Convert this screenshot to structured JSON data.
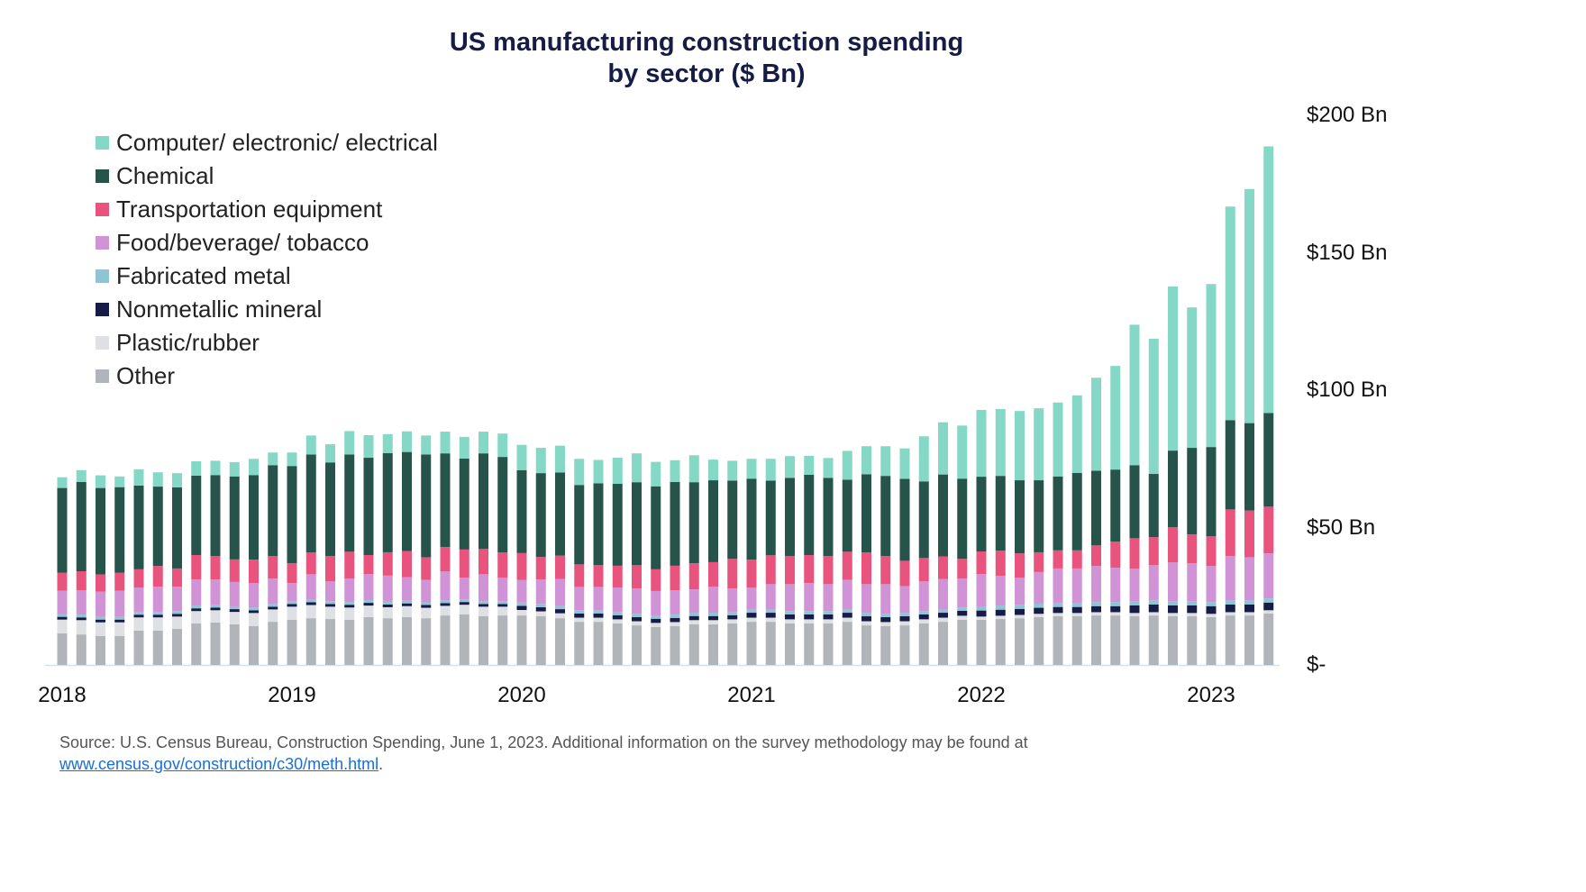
{
  "chart_data": {
    "type": "bar",
    "stacked": true,
    "title": "US manufacturing construction spending\nby sector ($ Bn)",
    "title_lines": [
      "US manufacturing construction spending",
      "by sector ($ Bn)"
    ],
    "x_tick_labels": [
      "2018",
      "2019",
      "2020",
      "2021",
      "2022",
      "2023"
    ],
    "x_period": "monthly, Jan 2018 – Apr 2023",
    "y_tick_labels": [
      "$-",
      "$50 Bn",
      "$100 Bn",
      "$150 Bn",
      "$200 Bn"
    ],
    "y_ticks": [
      0,
      50,
      100,
      150,
      200
    ],
    "ylim": [
      0,
      200
    ],
    "y_axis_side": "right",
    "grid": false,
    "legend_position": "top-left",
    "series": [
      {
        "name": "Other",
        "color": "#b1b4b8",
        "values": [
          11.5,
          11.1,
          10.5,
          10.5,
          12.5,
          12.5,
          13.1,
          15.1,
          15.4,
          14.8,
          14.1,
          15.7,
          16.4,
          17.0,
          16.7,
          16.4,
          17.4,
          17.0,
          17.4,
          17.0,
          18.0,
          18.4,
          17.7,
          18.0,
          18.0,
          17.7,
          17.0,
          15.7,
          15.7,
          15.1,
          14.4,
          13.8,
          14.1,
          14.8,
          14.8,
          15.1,
          15.7,
          15.7,
          15.1,
          15.1,
          15.1,
          15.7,
          14.4,
          14.1,
          14.4,
          15.1,
          15.7,
          16.4,
          16.4,
          16.7,
          17.0,
          17.4,
          17.7,
          17.7,
          18.0,
          18.0,
          17.7,
          18.0,
          17.7,
          17.7,
          17.4,
          18.0,
          18.0,
          18.7
        ]
      },
      {
        "name": "Plastic/rubber",
        "color": "#dfe0e3",
        "values": [
          5.0,
          5.2,
          5.0,
          5.0,
          4.8,
          4.8,
          4.5,
          4.5,
          4.5,
          4.5,
          4.8,
          4.5,
          4.8,
          4.8,
          4.5,
          4.5,
          4.2,
          4.0,
          4.0,
          3.8,
          3.5,
          3.5,
          3.5,
          3.2,
          2.0,
          1.8,
          1.8,
          1.5,
          1.5,
          1.5,
          1.5,
          1.5,
          1.5,
          1.5,
          1.5,
          1.5,
          1.5,
          1.5,
          1.5,
          1.5,
          1.5,
          1.5,
          1.5,
          1.5,
          1.5,
          1.5,
          1.5,
          1.5,
          1.2,
          1.2,
          1.2,
          1.2,
          1.2,
          1.2,
          1.2,
          1.2,
          1.2,
          1.2,
          1.2,
          1.2,
          1.2,
          1.2,
          1.2,
          1.2
        ]
      },
      {
        "name": "Nonmetallic mineral",
        "color": "#161c45",
        "values": [
          1.0,
          1.0,
          1.0,
          1.0,
          1.0,
          1.0,
          1.0,
          1.0,
          1.0,
          1.0,
          1.0,
          1.0,
          1.0,
          1.0,
          1.0,
          1.0,
          1.0,
          1.0,
          1.0,
          1.0,
          1.0,
          1.0,
          1.0,
          1.0,
          1.5,
          1.5,
          1.5,
          1.5,
          1.5,
          1.5,
          1.5,
          1.5,
          1.5,
          1.5,
          1.5,
          1.5,
          1.8,
          1.8,
          1.8,
          1.8,
          1.8,
          1.8,
          1.8,
          1.8,
          1.8,
          1.8,
          1.8,
          1.8,
          2.2,
          2.2,
          2.2,
          2.2,
          2.2,
          2.2,
          2.2,
          2.2,
          2.8,
          2.8,
          2.8,
          2.8,
          2.8,
          2.8,
          2.8,
          2.8
        ]
      },
      {
        "name": "Fabricated metal",
        "color": "#8fc3d6",
        "values": [
          1.0,
          1.0,
          1.0,
          1.0,
          1.0,
          1.0,
          1.0,
          1.0,
          1.0,
          1.0,
          1.0,
          1.0,
          1.0,
          1.0,
          1.0,
          1.0,
          1.0,
          1.0,
          1.0,
          1.0,
          1.0,
          1.0,
          1.0,
          1.0,
          1.2,
          1.2,
          1.2,
          1.2,
          1.2,
          1.2,
          1.2,
          1.2,
          1.2,
          1.2,
          1.2,
          1.2,
          1.2,
          1.2,
          1.2,
          1.2,
          1.2,
          1.2,
          1.2,
          1.2,
          1.2,
          1.2,
          1.2,
          1.2,
          1.5,
          1.5,
          1.5,
          1.5,
          1.5,
          1.5,
          1.5,
          1.5,
          1.5,
          1.5,
          1.5,
          1.5,
          1.5,
          1.5,
          1.5,
          1.5
        ]
      },
      {
        "name": "Food/beverage/ tobacco",
        "color": "#cf93d6",
        "values": [
          8.5,
          8.9,
          9.2,
          9.5,
          8.9,
          9.2,
          8.9,
          9.5,
          9.2,
          8.9,
          8.9,
          9.2,
          6.6,
          9.2,
          7.2,
          8.5,
          9.5,
          9.5,
          8.5,
          8.2,
          10.5,
          7.9,
          9.8,
          8.5,
          8.2,
          8.9,
          9.8,
          8.5,
          8.5,
          8.9,
          9.2,
          8.9,
          8.9,
          8.5,
          9.5,
          8.5,
          7.9,
          9.2,
          9.8,
          10.2,
          9.8,
          10.8,
          10.5,
          10.8,
          9.8,
          10.8,
          11.1,
          10.5,
          11.8,
          10.8,
          9.8,
          11.5,
          12.5,
          12.5,
          13.1,
          12.5,
          11.8,
          12.8,
          14.1,
          13.8,
          13.1,
          16.1,
          15.7,
          16.4
        ]
      },
      {
        "name": "Transportation equipment",
        "color": "#e9547f",
        "values": [
          6.6,
          6.9,
          6.2,
          6.6,
          6.6,
          7.5,
          6.6,
          8.9,
          8.5,
          8.2,
          8.5,
          8.2,
          7.2,
          7.9,
          9.2,
          9.8,
          6.9,
          8.5,
          9.5,
          8.2,
          8.9,
          10.2,
          9.2,
          9.2,
          9.8,
          8.2,
          8.5,
          8.2,
          7.9,
          7.9,
          8.5,
          7.9,
          8.9,
          9.5,
          8.9,
          10.8,
          10.2,
          10.5,
          10.2,
          10.2,
          10.2,
          10.2,
          11.5,
          10.2,
          9.2,
          8.5,
          8.2,
          7.2,
          8.2,
          9.2,
          8.9,
          7.2,
          6.6,
          6.6,
          7.5,
          9.5,
          11.1,
          10.2,
          12.8,
          10.5,
          10.8,
          17.0,
          17.0,
          17.0
        ]
      },
      {
        "name": "Chemical",
        "color": "#27544a",
        "values": [
          30.8,
          32.5,
          31.5,
          31.1,
          30.5,
          28.9,
          29.5,
          28.9,
          29.5,
          30.2,
          30.8,
          33.1,
          35.4,
          35.7,
          34.1,
          35.4,
          35.4,
          36.1,
          36.1,
          37.4,
          34.1,
          33.1,
          34.8,
          34.8,
          30.2,
          30.5,
          30.2,
          28.9,
          29.8,
          29.8,
          30.2,
          30.2,
          30.5,
          29.5,
          29.8,
          28.5,
          29.5,
          27.2,
          28.5,
          29.2,
          28.5,
          26.2,
          28.5,
          29.2,
          29.8,
          27.9,
          29.8,
          29.2,
          27.2,
          27.2,
          26.6,
          26.2,
          26.9,
          28.2,
          27.2,
          26.2,
          26.6,
          23.0,
          27.9,
          31.5,
          32.5,
          32.5,
          31.8,
          34.1
        ]
      },
      {
        "name": "Computer/ electronic/ electrical",
        "color": "#84d8c5",
        "values": [
          3.9,
          4.3,
          4.6,
          3.9,
          5.9,
          5.2,
          5.2,
          5.2,
          5.2,
          5.2,
          5.9,
          4.6,
          4.9,
          6.9,
          6.6,
          8.5,
          8.2,
          6.9,
          7.5,
          6.9,
          7.9,
          7.9,
          7.9,
          8.5,
          9.2,
          9.2,
          9.8,
          9.5,
          8.5,
          9.5,
          10.5,
          8.9,
          7.9,
          9.8,
          7.5,
          7.2,
          7.2,
          7.9,
          7.9,
          6.9,
          7.2,
          10.5,
          10.2,
          10.8,
          11.1,
          16.4,
          19.0,
          19.3,
          24.3,
          24.3,
          25.2,
          26.2,
          26.9,
          28.2,
          33.8,
          37.7,
          51.1,
          49.2,
          59.7,
          51.1,
          59.3,
          77.7,
          85.2,
          97.0
        ]
      }
    ],
    "legend_order": [
      "Computer/ electronic/ electrical",
      "Chemical",
      "Transportation equipment",
      "Food/beverage/ tobacco",
      "Fabricated metal",
      "Nonmetallic mineral",
      "Plastic/rubber",
      "Other"
    ]
  },
  "source": {
    "text": "Source: U.S. Census Bureau, Construction Spending, June 1, 2023. Additional information on the survey methodology may be found at",
    "link": "www.census.gov/construction/c30/meth.html",
    "end": "."
  }
}
